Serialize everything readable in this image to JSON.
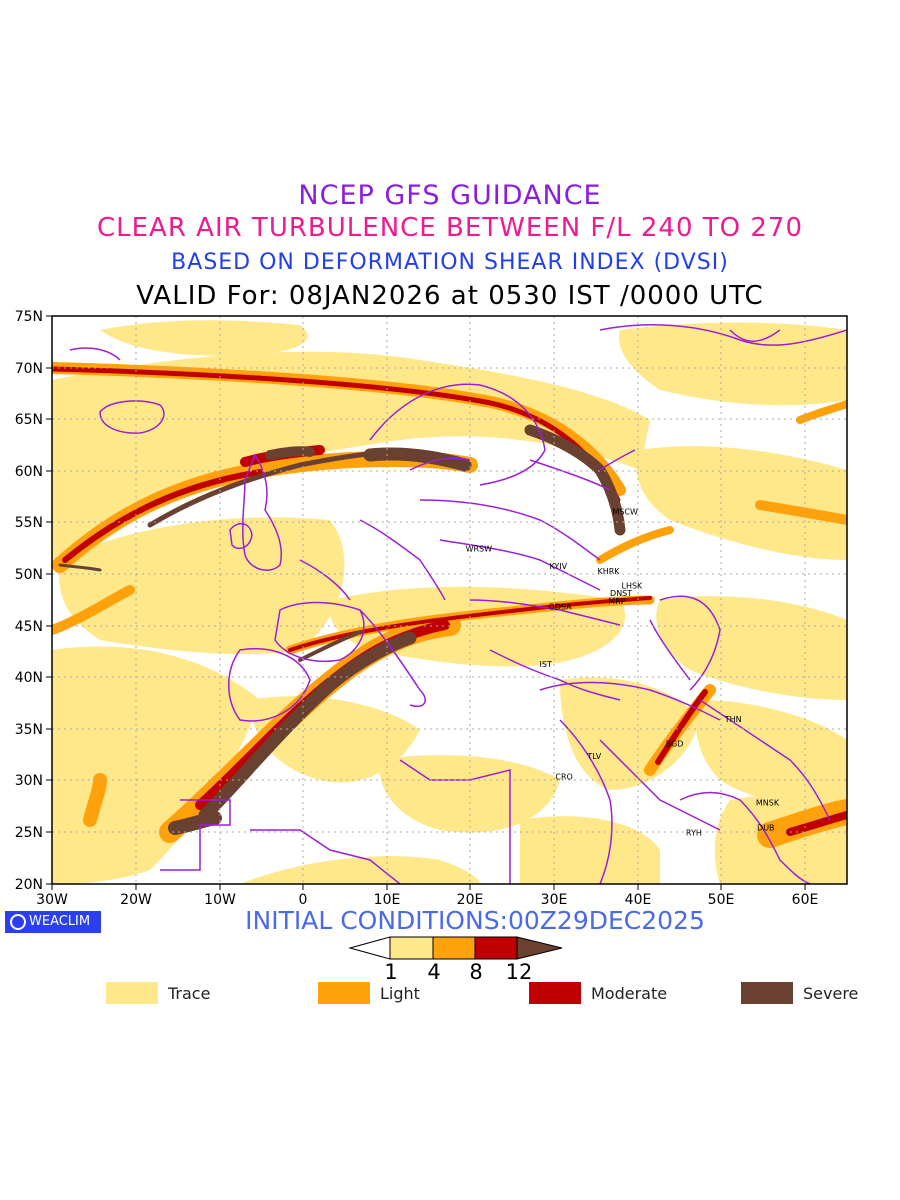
{
  "header": {
    "line1": "NCEP GFS GUIDANCE",
    "line2": "CLEAR AIR TURBULENCE BETWEEN F/L 240 TO 270",
    "line3": "BASED ON DEFORMATION SHEAR INDEX (DVSI)",
    "line4": "VALID For: 08JAN2026 at 0530 IST /0000 UTC"
  },
  "map": {
    "lat_labels": [
      "75N",
      "70N",
      "65N",
      "60N",
      "55N",
      "50N",
      "45N",
      "40N",
      "35N",
      "30N",
      "25N",
      "20N"
    ],
    "lon_labels": [
      "30W",
      "20W",
      "10W",
      "0",
      "10E",
      "20E",
      "30E",
      "40E",
      "50E",
      "60E"
    ],
    "lon_range": [
      -30,
      65
    ],
    "lat_range": [
      20,
      75
    ],
    "cities": [
      {
        "name": "MSCW",
        "lon": 38.5,
        "lat": 55.8
      },
      {
        "name": "WRSW",
        "lon": 21.0,
        "lat": 52.2
      },
      {
        "name": "KYIV",
        "lon": 30.5,
        "lat": 50.5
      },
      {
        "name": "KHRK",
        "lon": 36.5,
        "lat": 50.0
      },
      {
        "name": "LHSK",
        "lon": 39.3,
        "lat": 48.6
      },
      {
        "name": "DNST",
        "lon": 38.0,
        "lat": 47.9
      },
      {
        "name": "MRP",
        "lon": 37.5,
        "lat": 47.1
      },
      {
        "name": "ODSA",
        "lon": 30.7,
        "lat": 46.6
      },
      {
        "name": "IST",
        "lon": 29.0,
        "lat": 41.0
      },
      {
        "name": "THN",
        "lon": 51.4,
        "lat": 35.7
      },
      {
        "name": "BGD",
        "lon": 44.4,
        "lat": 33.3
      },
      {
        "name": "TLV",
        "lon": 34.8,
        "lat": 32.1
      },
      {
        "name": "CRO",
        "lon": 31.2,
        "lat": 30.1
      },
      {
        "name": "MNSK",
        "lon": 55.5,
        "lat": 27.6
      },
      {
        "name": "RYH",
        "lon": 46.7,
        "lat": 24.7
      },
      {
        "name": "DUB",
        "lon": 55.3,
        "lat": 25.2
      }
    ],
    "colors": {
      "border": "#9a1fd6",
      "frame": "#000000",
      "trace": "#ffe88a",
      "light": "#ffa10a",
      "moderate": "#c00000",
      "severe": "#6a4030"
    }
  },
  "logo": {
    "label": "WEACLIM"
  },
  "initial": "INITIAL CONDITIONS:00Z29DEC2025",
  "colorbar": {
    "ticks": [
      "1",
      "4",
      "8",
      "12"
    ]
  },
  "legend": [
    {
      "label": "Trace",
      "color": "#ffe88a"
    },
    {
      "label": "Light",
      "color": "#ffa10a"
    },
    {
      "label": "Moderate",
      "color": "#c00000"
    },
    {
      "label": "Severe",
      "color": "#6a4030"
    }
  ]
}
